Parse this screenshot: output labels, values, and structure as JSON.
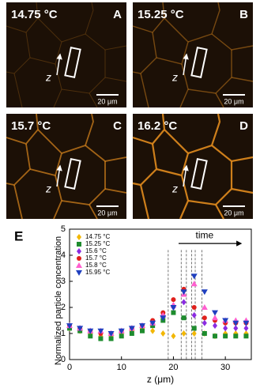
{
  "panels": [
    {
      "temperature": "14.75 °C",
      "letter": "A",
      "axis_label": "z",
      "scale_bar": "20 μm"
    },
    {
      "temperature": "15.25 °C",
      "letter": "B",
      "axis_label": "z",
      "scale_bar": "20 μm"
    },
    {
      "temperature": "15.7 °C",
      "letter": "C",
      "axis_label": "z",
      "scale_bar": "20 μm"
    },
    {
      "temperature": "16.2 °C",
      "letter": "D",
      "axis_label": "z",
      "scale_bar": "20 μm"
    }
  ],
  "chart_data": {
    "type": "scatter",
    "panel_letter": "E",
    "y_label": "Normalized particle concentration",
    "x_label": "z (μm)",
    "annotation": "time",
    "xlim": [
      0,
      35
    ],
    "xticks": [
      0,
      10,
      20,
      30
    ],
    "ylim": [
      0,
      5
    ],
    "yticks": [
      0,
      1,
      2,
      3,
      4,
      5
    ],
    "dashed_lines_x": [
      19,
      21.5,
      22.5,
      23.5,
      24.2,
      25.5
    ],
    "x": [
      0,
      2,
      4,
      6,
      8,
      10,
      12,
      14,
      16,
      18,
      20,
      22,
      24,
      26,
      28,
      30,
      32,
      34
    ],
    "series": [
      {
        "name": "14.75 °C",
        "color": "#f2b705",
        "marker": "diamond",
        "values": [
          1.2,
          1.1,
          1.0,
          0.9,
          0.9,
          1.0,
          1.1,
          1.2,
          1.1,
          1.0,
          0.9,
          1.0,
          1.0,
          1.0,
          0.9,
          1.0,
          1.0,
          1.0
        ]
      },
      {
        "name": "15.25 °C",
        "color": "#1e8c2e",
        "marker": "square",
        "values": [
          1.2,
          1.1,
          0.9,
          0.8,
          0.8,
          0.9,
          1.0,
          1.1,
          1.3,
          1.5,
          1.8,
          1.6,
          1.2,
          1.0,
          0.9,
          0.9,
          0.9,
          0.9
        ]
      },
      {
        "name": "15.6 °C",
        "color": "#8a2be2",
        "marker": "diamond",
        "values": [
          1.3,
          1.2,
          1.1,
          1.0,
          1.0,
          1.1,
          1.2,
          1.3,
          1.4,
          1.7,
          2.0,
          2.2,
          1.7,
          1.4,
          1.3,
          1.2,
          1.2,
          1.2
        ]
      },
      {
        "name": "15.7 °C",
        "color": "#e0201c",
        "marker": "circle",
        "values": [
          1.3,
          1.2,
          1.1,
          1.0,
          1.0,
          1.1,
          1.2,
          1.3,
          1.5,
          1.8,
          2.3,
          2.7,
          2.0,
          1.6,
          1.5,
          1.4,
          1.4,
          1.4
        ]
      },
      {
        "name": "15.8 °C",
        "color": "#ff5fcf",
        "marker": "triangle-up",
        "values": [
          1.3,
          1.2,
          1.1,
          1.1,
          1.0,
          1.1,
          1.2,
          1.3,
          1.4,
          1.7,
          2.1,
          2.5,
          2.9,
          2.0,
          1.6,
          1.5,
          1.5,
          1.5
        ]
      },
      {
        "name": "15.95 °C",
        "color": "#1f3fbf",
        "marker": "triangle-down",
        "values": [
          1.3,
          1.2,
          1.1,
          1.1,
          1.0,
          1.1,
          1.2,
          1.3,
          1.4,
          1.6,
          2.0,
          2.6,
          3.2,
          2.6,
          1.8,
          1.5,
          1.4,
          1.4
        ]
      }
    ]
  }
}
